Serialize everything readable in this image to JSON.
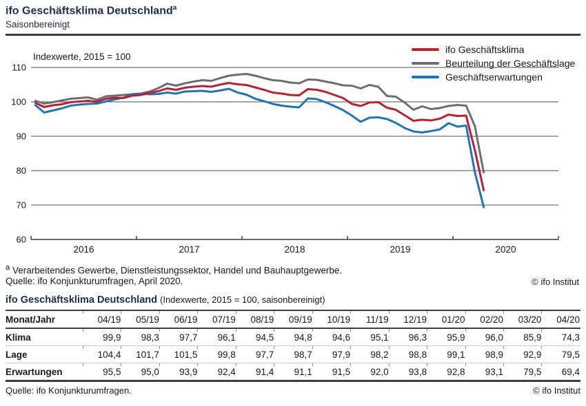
{
  "header": {
    "title": "ifo Geschäftsklima Deutschland",
    "title_sup": "a",
    "subtitle": "Saisonbereinigt"
  },
  "chart": {
    "axis_note": "Indexwerte, 2015 = 100",
    "y_tick_labels": [
      "110",
      "100",
      "90",
      "80",
      "70",
      "60"
    ],
    "x_year_labels": [
      "2016",
      "2017",
      "2018",
      "2019",
      "2020"
    ],
    "legend": [
      {
        "key": "klima",
        "label": "ifo Geschäftsklima",
        "color": "#be1e2d"
      },
      {
        "key": "lage",
        "label": "Beurteilung der Geschäftslage",
        "color": "#6d6e71"
      },
      {
        "key": "erwartungen",
        "label": "Geschäftserwartungen",
        "color": "#1b75bc"
      }
    ],
    "colors": {
      "gridline": "#4d4d4d",
      "axis": "#3c3c3b"
    }
  },
  "chart_data": {
    "type": "line",
    "title": "ifo Geschäftsklima Deutschland (saisonbereinigt)",
    "unit": "Indexwerte, 2015 = 100",
    "x_monthly_start": "2016-01",
    "x_monthly_end": "2020-04",
    "x_tick_labels": [
      "2016",
      "2017",
      "2018",
      "2019",
      "2020"
    ],
    "ylim": [
      60,
      112
    ],
    "yticks": [
      60,
      70,
      80,
      90,
      100,
      110
    ],
    "grid": "horizontal",
    "legend_position": "top-right",
    "series": [
      {
        "name": "ifo Geschäftsklima",
        "color": "#be1e2d",
        "values": [
          99.7,
          98.5,
          99.0,
          99.3,
          99.9,
          100.1,
          100.3,
          100.0,
          100.9,
          101.2,
          101.1,
          101.8,
          102.0,
          102.6,
          103.1,
          103.9,
          103.5,
          104.1,
          104.4,
          104.6,
          104.4,
          105.0,
          105.5,
          105.1,
          104.9,
          104.2,
          103.5,
          102.7,
          102.4,
          102.0,
          101.9,
          103.7,
          103.5,
          102.9,
          102.0,
          101.1,
          99.4,
          98.8,
          99.8,
          99.9,
          98.3,
          97.7,
          96.1,
          94.5,
          94.8,
          94.6,
          95.1,
          96.3,
          95.9,
          96.0,
          85.9,
          74.3
        ]
      },
      {
        "name": "Beurteilung der Geschäftslage",
        "color": "#6d6e71",
        "values": [
          100.3,
          99.5,
          99.9,
          100.4,
          100.9,
          101.1,
          101.3,
          100.6,
          101.6,
          101.8,
          102.0,
          102.2,
          102.4,
          103.0,
          104.0,
          105.3,
          104.7,
          105.4,
          105.9,
          106.3,
          106.1,
          106.9,
          107.6,
          107.9,
          108.1,
          107.6,
          106.9,
          106.3,
          106.1,
          105.6,
          105.4,
          106.5,
          106.4,
          105.9,
          105.4,
          104.8,
          104.7,
          103.9,
          104.9,
          104.4,
          101.7,
          101.5,
          99.8,
          97.7,
          98.7,
          97.9,
          98.2,
          98.8,
          99.1,
          98.9,
          92.9,
          79.5
        ]
      },
      {
        "name": "Geschäftserwartungen",
        "color": "#1b75bc",
        "values": [
          99.0,
          96.9,
          97.5,
          98.1,
          98.9,
          99.2,
          99.4,
          99.5,
          100.1,
          100.7,
          101.2,
          102.2,
          102.4,
          102.2,
          102.3,
          102.7,
          102.4,
          103.0,
          103.1,
          103.2,
          102.9,
          103.3,
          103.8,
          102.7,
          102.1,
          100.9,
          100.2,
          99.4,
          98.9,
          98.6,
          98.4,
          101.0,
          100.8,
          99.9,
          98.8,
          97.6,
          96.0,
          94.2,
          95.4,
          95.5,
          95.0,
          93.9,
          92.4,
          91.4,
          91.1,
          91.5,
          92.0,
          93.8,
          92.8,
          93.1,
          79.5,
          69.4
        ]
      }
    ]
  },
  "chart_footer": {
    "footnote_marker": "a",
    "footnote": "Verarbeitendes Gewerbe, Dienstleistungssektor, Handel und Bauhauptgewerbe.",
    "source": "Quelle: ifo Konjunkturumfragen, April 2020.",
    "copyright": "© ifo Institut"
  },
  "table": {
    "title": "ifo Geschäftsklima Deutschland",
    "title_note": "(Indexwerte, 2015 = 100, saisonbereinigt)",
    "columns": [
      "Monat/Jahr",
      "04/19",
      "05/19",
      "06/19",
      "07/19",
      "08/19",
      "09/19",
      "10/19",
      "11/19",
      "12/19",
      "01/20",
      "02/20",
      "03/20",
      "04/20"
    ],
    "rows": [
      {
        "label": "Klima",
        "values": [
          "99,9",
          "98,3",
          "97,7",
          "96,1",
          "94,5",
          "94,8",
          "94,6",
          "95,1",
          "96,3",
          "95,9",
          "96,0",
          "85,9",
          "74,3"
        ]
      },
      {
        "label": "Lage",
        "values": [
          "104,4",
          "101,7",
          "101,5",
          "99,8",
          "97,7",
          "98,7",
          "97,9",
          "98,2",
          "98,8",
          "99,1",
          "98,9",
          "92,9",
          "79,5"
        ]
      },
      {
        "label": "Erwartungen",
        "values": [
          "95,5",
          "95,0",
          "93,9",
          "92,4",
          "91,4",
          "91,1",
          "91,5",
          "92,0",
          "93,8",
          "92,8",
          "93,1",
          "79,5",
          "69,4"
        ]
      }
    ],
    "source": "Quelle: ifo Konjunkturumfragen.",
    "copyright": "© ifo Institut"
  }
}
